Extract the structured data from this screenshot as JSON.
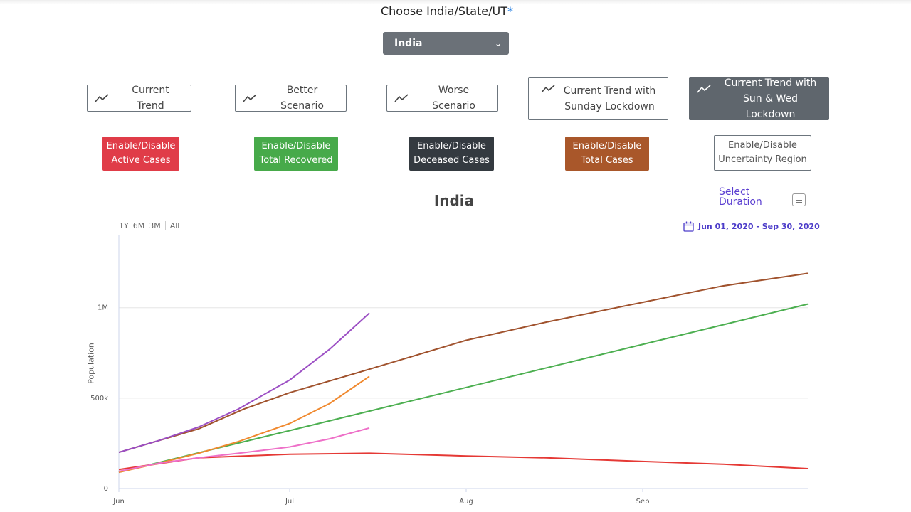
{
  "selector": {
    "label": "Choose India/State/UT",
    "required_mark": "*",
    "selected": "India"
  },
  "scenarios": [
    {
      "label": "Current Trend",
      "active": false
    },
    {
      "label": "Better Scenario",
      "active": false
    },
    {
      "label": "Worse Scenario",
      "active": false
    },
    {
      "label_line1": "Current Trend with",
      "label_line2": "Sunday Lockdown",
      "active": false
    },
    {
      "label_line1": "Current Trend with",
      "label_line2": "Sun & Wed Lockdown",
      "active": true
    }
  ],
  "toggles": [
    {
      "line1": "Enable/Disable",
      "line2": "Active Cases",
      "color": "#e03c48"
    },
    {
      "line1": "Enable/Disable",
      "line2": "Total Recovered",
      "color": "#47aa4a"
    },
    {
      "line1": "Enable/Disable",
      "line2": "Deceased Cases",
      "color": "#343a40"
    },
    {
      "line1": "Enable/Disable",
      "line2": "Total Cases",
      "color": "#a9572a"
    },
    {
      "line1": "Enable/Disable",
      "line2": "Uncertainty Region",
      "color": "#ffffff"
    }
  ],
  "chart_header": {
    "title": "India",
    "select_duration_line1": "Select",
    "select_duration_line2": "Duration",
    "range_buttons": [
      "1Y",
      "6M",
      "3M",
      "All"
    ],
    "date_range": "Jun 01, 2020 - Sep 30, 2020"
  },
  "chart_data": {
    "type": "line",
    "title": "India",
    "ylabel": "Population",
    "xlabel": "",
    "x_range": [
      "2020-06-01",
      "2020-09-30"
    ],
    "ylim": [
      0,
      1400000
    ],
    "y_ticks": [
      0,
      500000,
      1000000
    ],
    "y_tick_labels": [
      "0",
      "500k",
      "1M"
    ],
    "x_ticks": [
      "2020-06-01",
      "2020-07-01",
      "2020-08-01",
      "2020-09-01"
    ],
    "x_tick_labels": [
      "Jun",
      "Jul",
      "Aug",
      "Sep"
    ],
    "grid": true,
    "series": [
      {
        "color": "#a0522d",
        "x": [
          "2020-06-01",
          "2020-06-15",
          "2020-06-23",
          "2020-07-01",
          "2020-07-15",
          "2020-08-01",
          "2020-08-15",
          "2020-09-01",
          "2020-09-15",
          "2020-09-30"
        ],
        "values": [
          200000,
          330000,
          440000,
          530000,
          660000,
          820000,
          920000,
          1030000,
          1120000,
          1190000
        ]
      },
      {
        "color": "#4caf50",
        "x": [
          "2020-06-01",
          "2020-09-30"
        ],
        "values": [
          90000,
          1020000
        ]
      },
      {
        "color": "#e53935",
        "x": [
          "2020-06-01",
          "2020-06-15",
          "2020-07-01",
          "2020-07-15",
          "2020-08-01",
          "2020-08-15",
          "2020-09-01",
          "2020-09-15",
          "2020-09-30"
        ],
        "values": [
          105000,
          170000,
          190000,
          195000,
          180000,
          170000,
          150000,
          135000,
          110000
        ]
      },
      {
        "color": "#9c4fc4",
        "x": [
          "2020-06-01",
          "2020-06-08",
          "2020-06-15",
          "2020-06-22",
          "2020-07-01",
          "2020-07-08",
          "2020-07-15"
        ],
        "values": [
          200000,
          265000,
          340000,
          440000,
          600000,
          770000,
          970000
        ]
      },
      {
        "color": "#f0892f",
        "x": [
          "2020-06-01",
          "2020-06-08",
          "2020-06-15",
          "2020-06-22",
          "2020-07-01",
          "2020-07-08",
          "2020-07-15"
        ],
        "values": [
          90000,
          140000,
          195000,
          260000,
          360000,
          470000,
          620000
        ]
      },
      {
        "color": "#ee70c8",
        "x": [
          "2020-06-01",
          "2020-06-08",
          "2020-06-15",
          "2020-06-22",
          "2020-07-01",
          "2020-07-08",
          "2020-07-15"
        ],
        "values": [
          95000,
          140000,
          170000,
          195000,
          230000,
          275000,
          335000
        ]
      }
    ]
  }
}
